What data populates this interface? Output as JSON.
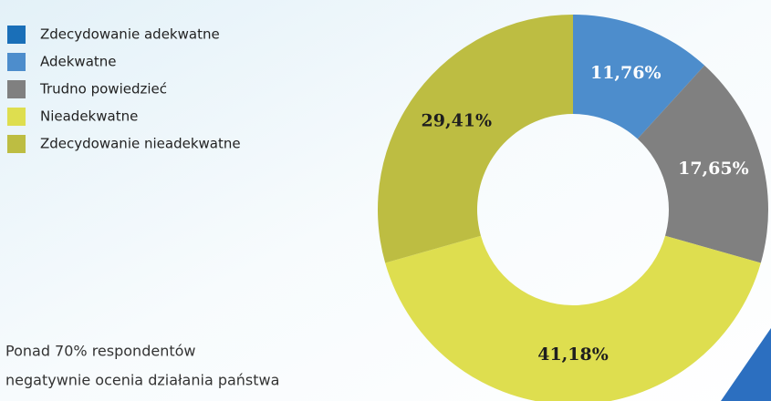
{
  "chart_data": {
    "type": "donut",
    "categories": [
      "Zdecydowanie adekwatne",
      "Adekwatne",
      "Trudno powiedzieć",
      "Nieadekwatne",
      "Zdecydowanie nieadekwatne"
    ],
    "values": [
      0,
      11.76,
      17.65,
      41.18,
      29.41
    ],
    "value_labels": [
      null,
      "11,76%",
      "17,65%",
      "41,18%",
      "29,41%"
    ],
    "colors": [
      "#1a6fb8",
      "#4d8dcc",
      "#808080",
      "#dede4f",
      "#bdbd42"
    ],
    "label_colors": [
      "#ffffff",
      "#ffffff",
      "#ffffff",
      "#1e1e1e",
      "#1e1e1e"
    ],
    "annotation": [
      "Ponad 70% respondentów",
      "negatywnie ocenia działania państwa"
    ],
    "legend": "top-left"
  }
}
